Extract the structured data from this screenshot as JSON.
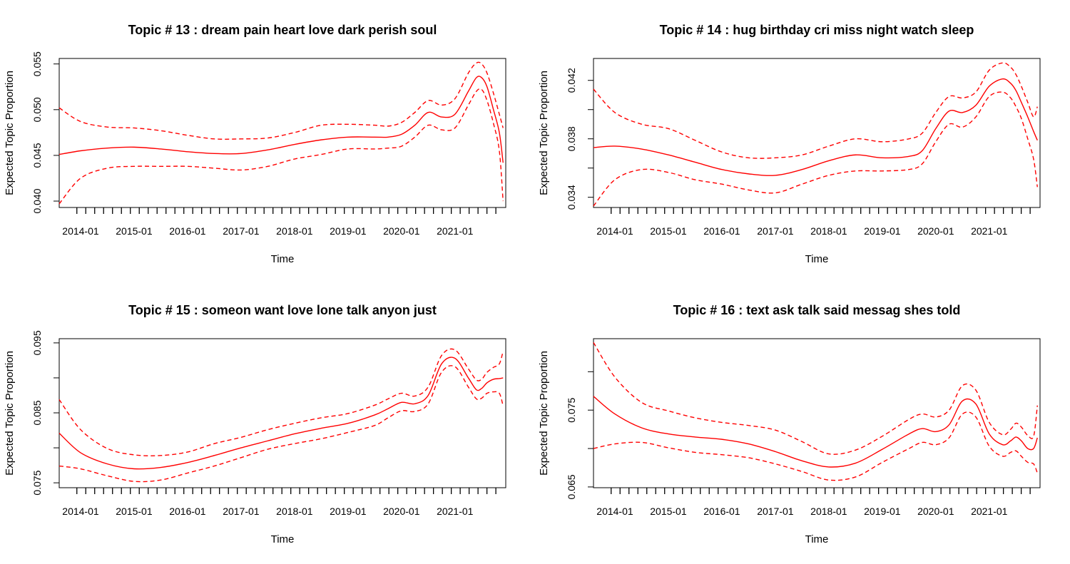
{
  "colors": {
    "line": "#ff0000",
    "axis": "#000000"
  },
  "chart_data": [
    {
      "type": "line",
      "title": "Topic # 13 :  dream pain heart love dark perish soul",
      "xlabel": "Time",
      "ylabel": "Expected Topic Proportion",
      "xlim": [
        2013.6,
        2021.95
      ],
      "ylim": [
        0.0393,
        0.0556
      ],
      "yticks": [
        0.04,
        0.045,
        0.05,
        0.055
      ],
      "ytick_labels": [
        "0.040",
        "0.045",
        "0.050",
        "0.055"
      ],
      "xtick_labels": [
        "2014-01",
        "2015-01",
        "2016-01",
        "2017-01",
        "2018-01",
        "2019-01",
        "2020-01",
        "2021-01"
      ],
      "xticks": [
        2014.0,
        2015.0,
        2016.0,
        2017.0,
        2018.0,
        2019.0,
        2020.0,
        2021.0
      ],
      "minor_tick_step": 0.1667,
      "minor_tick_range": [
        2013.93,
        2021.92
      ],
      "x": [
        2013.6,
        2014.0,
        2014.5,
        2015.0,
        2015.5,
        2016.0,
        2016.5,
        2017.0,
        2017.5,
        2018.0,
        2018.5,
        2019.0,
        2019.5,
        2019.75,
        2020.0,
        2020.25,
        2020.5,
        2020.75,
        2021.0,
        2021.25,
        2021.4,
        2021.5,
        2021.6,
        2021.72,
        2021.83,
        2021.9
      ],
      "series": [
        {
          "style": "solid",
          "values": [
            0.0451,
            0.0455,
            0.0458,
            0.0459,
            0.0457,
            0.0454,
            0.0452,
            0.0452,
            0.0456,
            0.0462,
            0.0467,
            0.047,
            0.047,
            0.047,
            0.0473,
            0.0483,
            0.0497,
            0.0492,
            0.0495,
            0.052,
            0.0535,
            0.0535,
            0.0525,
            0.05,
            0.0475,
            0.0442
          ]
        },
        {
          "style": "dashed",
          "values": [
            0.0502,
            0.0487,
            0.0481,
            0.048,
            0.0477,
            0.0472,
            0.0468,
            0.0468,
            0.0469,
            0.0475,
            0.0483,
            0.0484,
            0.0483,
            0.0482,
            0.0486,
            0.0497,
            0.051,
            0.0505,
            0.0512,
            0.054,
            0.0551,
            0.055,
            0.054,
            0.0518,
            0.0495,
            0.048
          ]
        },
        {
          "style": "dashed",
          "values": [
            0.0397,
            0.0425,
            0.0436,
            0.0438,
            0.0438,
            0.0438,
            0.0436,
            0.0434,
            0.0438,
            0.0446,
            0.0451,
            0.0457,
            0.0457,
            0.0458,
            0.046,
            0.047,
            0.0483,
            0.0478,
            0.048,
            0.0505,
            0.052,
            0.0522,
            0.051,
            0.0485,
            0.0455,
            0.04
          ]
        }
      ]
    },
    {
      "type": "line",
      "title": "Topic # 14 :  hug birthday cri miss night watch sleep",
      "xlabel": "Time",
      "ylabel": "Expected Topic Proportion",
      "xlim": [
        2013.6,
        2021.95
      ],
      "ylim": [
        0.0333,
        0.0435
      ],
      "yticks": [
        0.034,
        0.036,
        0.038,
        0.04,
        0.042
      ],
      "ytick_labels": [
        "0.034",
        "",
        "0.038",
        "",
        "0.042"
      ],
      "xtick_labels": [
        "2014-01",
        "2015-01",
        "2016-01",
        "2017-01",
        "2018-01",
        "2019-01",
        "2020-01",
        "2021-01"
      ],
      "xticks": [
        2014.0,
        2015.0,
        2016.0,
        2017.0,
        2018.0,
        2019.0,
        2020.0,
        2021.0
      ],
      "minor_tick_step": 0.1667,
      "minor_tick_range": [
        2013.93,
        2021.92
      ],
      "x": [
        2013.6,
        2014.0,
        2014.5,
        2015.0,
        2015.5,
        2016.0,
        2016.5,
        2017.0,
        2017.5,
        2018.0,
        2018.5,
        2019.0,
        2019.5,
        2019.75,
        2020.0,
        2020.25,
        2020.5,
        2020.75,
        2021.0,
        2021.25,
        2021.4,
        2021.5,
        2021.6,
        2021.72,
        2021.83,
        2021.9
      ],
      "series": [
        {
          "style": "solid",
          "values": [
            0.0374,
            0.0375,
            0.0373,
            0.0369,
            0.0364,
            0.0359,
            0.0356,
            0.0355,
            0.0359,
            0.0365,
            0.0369,
            0.0367,
            0.0368,
            0.0372,
            0.0387,
            0.0399,
            0.0398,
            0.0403,
            0.0416,
            0.0421,
            0.0418,
            0.0413,
            0.0405,
            0.0395,
            0.0385,
            0.0379
          ]
        },
        {
          "style": "dashed",
          "values": [
            0.0414,
            0.0398,
            0.039,
            0.0387,
            0.0379,
            0.0371,
            0.0367,
            0.0367,
            0.0369,
            0.0375,
            0.038,
            0.0378,
            0.038,
            0.0384,
            0.0398,
            0.0409,
            0.0408,
            0.0412,
            0.0427,
            0.0432,
            0.0429,
            0.0424,
            0.0416,
            0.0405,
            0.0395,
            0.0402
          ]
        },
        {
          "style": "dashed",
          "values": [
            0.0334,
            0.0352,
            0.0359,
            0.0357,
            0.0352,
            0.0349,
            0.0345,
            0.0343,
            0.0349,
            0.0355,
            0.0358,
            0.0358,
            0.0359,
            0.0363,
            0.0378,
            0.039,
            0.0388,
            0.0395,
            0.0409,
            0.0412,
            0.0408,
            0.0402,
            0.0394,
            0.038,
            0.0366,
            0.0347
          ]
        }
      ]
    },
    {
      "type": "line",
      "title": "Topic # 15 :  someon want love lone talk anyon just",
      "xlabel": "Time",
      "ylabel": "Expected Topic Proportion",
      "xlim": [
        2013.6,
        2021.95
      ],
      "ylim": [
        0.0743,
        0.0956
      ],
      "yticks": [
        0.075,
        0.08,
        0.085,
        0.09,
        0.095
      ],
      "ytick_labels": [
        "0.075",
        "",
        "0.085",
        "",
        "0.095"
      ],
      "xtick_labels": [
        "2014-01",
        "2015-01",
        "2016-01",
        "2017-01",
        "2018-01",
        "2019-01",
        "2020-01",
        "2021-01"
      ],
      "xticks": [
        2014.0,
        2015.0,
        2016.0,
        2017.0,
        2018.0,
        2019.0,
        2020.0,
        2021.0
      ],
      "minor_tick_step": 0.1667,
      "minor_tick_range": [
        2013.93,
        2021.92
      ],
      "x": [
        2013.6,
        2014.0,
        2014.5,
        2015.0,
        2015.5,
        2016.0,
        2016.5,
        2017.0,
        2017.5,
        2018.0,
        2018.5,
        2019.0,
        2019.5,
        2019.75,
        2020.0,
        2020.25,
        2020.5,
        2020.75,
        2021.0,
        2021.25,
        2021.4,
        2021.5,
        2021.6,
        2021.72,
        2021.83,
        2021.9
      ],
      "series": [
        {
          "style": "solid",
          "values": [
            0.0821,
            0.0793,
            0.0777,
            0.077,
            0.0772,
            0.0779,
            0.0789,
            0.08,
            0.081,
            0.082,
            0.0828,
            0.0835,
            0.0847,
            0.0856,
            0.0865,
            0.0863,
            0.0875,
            0.092,
            0.0928,
            0.09,
            0.0883,
            0.0885,
            0.0893,
            0.0898,
            0.0899,
            0.09
          ]
        },
        {
          "style": "dashed",
          "values": [
            0.0869,
            0.0826,
            0.0799,
            0.079,
            0.0789,
            0.0794,
            0.0806,
            0.0815,
            0.0826,
            0.0835,
            0.0843,
            0.0849,
            0.0861,
            0.087,
            0.0878,
            0.0874,
            0.0887,
            0.0932,
            0.094,
            0.0913,
            0.0897,
            0.0898,
            0.0908,
            0.0915,
            0.092,
            0.0938
          ]
        },
        {
          "style": "dashed",
          "values": [
            0.0774,
            0.077,
            0.076,
            0.0752,
            0.0754,
            0.0764,
            0.0774,
            0.0786,
            0.0798,
            0.0806,
            0.0813,
            0.0822,
            0.0832,
            0.0843,
            0.0853,
            0.0852,
            0.0863,
            0.0908,
            0.0916,
            0.0887,
            0.087,
            0.0871,
            0.0878,
            0.088,
            0.0878,
            0.086
          ]
        }
      ]
    },
    {
      "type": "line",
      "title": "Topic # 16 :  text ask talk said messag shes told",
      "xlabel": "Time",
      "ylabel": "Expected Topic Proportion",
      "xlim": [
        2013.6,
        2021.95
      ],
      "ylim": [
        0.0649,
        0.0843
      ],
      "yticks": [
        0.065,
        0.07,
        0.075,
        0.08
      ],
      "ytick_labels": [
        "0.065",
        "",
        "0.075",
        ""
      ],
      "xtick_labels": [
        "2014-01",
        "2015-01",
        "2016-01",
        "2017-01",
        "2018-01",
        "2019-01",
        "2020-01",
        "2021-01"
      ],
      "xticks": [
        2014.0,
        2015.0,
        2016.0,
        2017.0,
        2018.0,
        2019.0,
        2020.0,
        2021.0
      ],
      "minor_tick_step": 0.1667,
      "minor_tick_range": [
        2013.93,
        2021.92
      ],
      "x": [
        2013.6,
        2014.0,
        2014.5,
        2015.0,
        2015.5,
        2016.0,
        2016.5,
        2017.0,
        2017.5,
        2018.0,
        2018.5,
        2019.0,
        2019.5,
        2019.75,
        2020.0,
        2020.25,
        2020.5,
        2020.75,
        2021.0,
        2021.25,
        2021.4,
        2021.5,
        2021.6,
        2021.72,
        2021.83,
        2021.9
      ],
      "series": [
        {
          "style": "solid",
          "values": [
            0.0768,
            0.0745,
            0.0727,
            0.0719,
            0.0715,
            0.0712,
            0.0706,
            0.0696,
            0.0684,
            0.0676,
            0.0681,
            0.0699,
            0.0719,
            0.0726,
            0.0722,
            0.0731,
            0.0762,
            0.0758,
            0.0719,
            0.0705,
            0.071,
            0.0715,
            0.071,
            0.07,
            0.07,
            0.0714
          ]
        },
        {
          "style": "dashed",
          "values": [
            0.0838,
            0.0793,
            0.076,
            0.0749,
            0.074,
            0.0734,
            0.073,
            0.0724,
            0.0709,
            0.0693,
            0.0698,
            0.0716,
            0.0738,
            0.0745,
            0.0741,
            0.075,
            0.0782,
            0.0776,
            0.0734,
            0.0718,
            0.0725,
            0.0733,
            0.0728,
            0.0717,
            0.0716,
            0.0756
          ]
        },
        {
          "style": "dashed",
          "values": [
            0.07,
            0.0706,
            0.0708,
            0.0701,
            0.0695,
            0.0692,
            0.0688,
            0.068,
            0.067,
            0.0659,
            0.0663,
            0.0682,
            0.07,
            0.0708,
            0.0705,
            0.0714,
            0.0745,
            0.0741,
            0.0703,
            0.069,
            0.0695,
            0.0697,
            0.069,
            0.0682,
            0.068,
            0.0668
          ]
        }
      ]
    }
  ]
}
